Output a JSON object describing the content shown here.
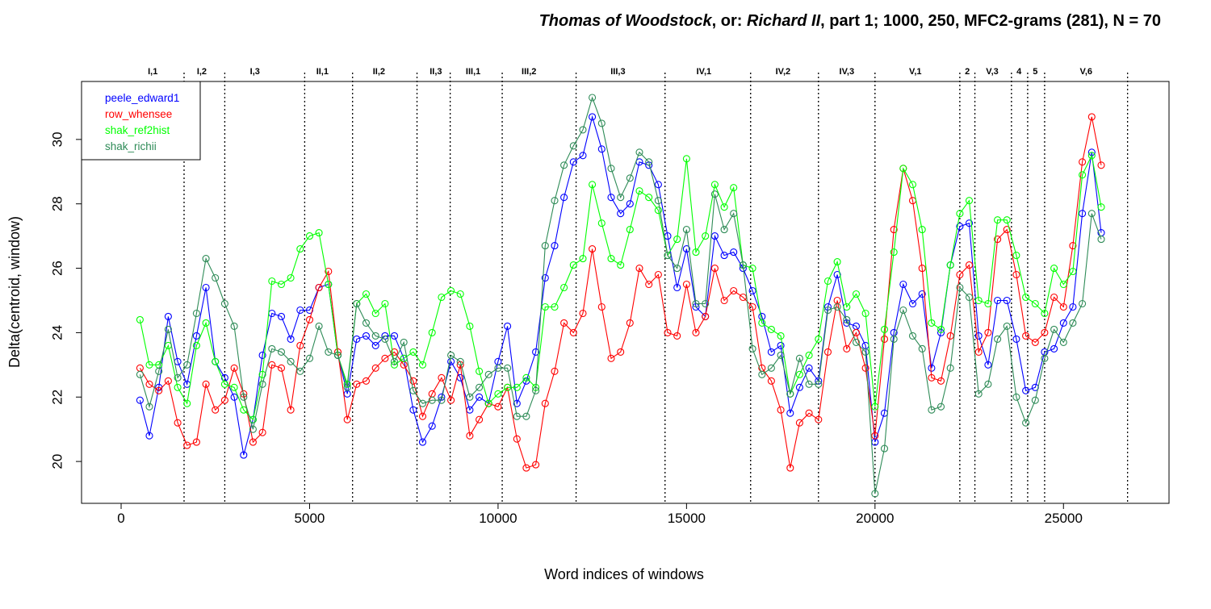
{
  "title": {
    "italic_1": "Thomas of Woodstock",
    "plain_1": ", or: ",
    "italic_2": "Richard II",
    "plain_2": ", part 1; 1000, 250, MFC2-grams (281), N = 70"
  },
  "chart_data": {
    "type": "line",
    "xlabel": "Word indices of windows",
    "ylabel": "Delta(centroid, window)",
    "xlim": [
      -1050,
      27800
    ],
    "ylim": [
      18.7,
      31.8
    ],
    "x_ticks": [
      0,
      5000,
      10000,
      15000,
      20000,
      25000
    ],
    "x_tick_labels": [
      "0",
      "5000",
      "10000",
      "15000",
      "20000",
      "25000"
    ],
    "y_ticks": [
      20,
      22,
      24,
      26,
      28,
      30
    ],
    "y_tick_labels": [
      "20",
      "22",
      "24",
      "26",
      "28",
      "30"
    ],
    "legend_position": "top-left",
    "marker": "open-circle",
    "scene_boundaries": [
      1670,
      2750,
      4870,
      6140,
      7850,
      8730,
      10110,
      12070,
      14430,
      16700,
      18500,
      20000,
      22250,
      22650,
      23620,
      24050,
      24500,
      26700
    ],
    "scene_labels": [
      {
        "label": "I,1",
        "x": 840
      },
      {
        "label": "I,2",
        "x": 2140
      },
      {
        "label": "I,3",
        "x": 3550
      },
      {
        "label": "II,1",
        "x": 5340
      },
      {
        "label": "II,2",
        "x": 6840
      },
      {
        "label": "II,3",
        "x": 8350
      },
      {
        "label": "III,1",
        "x": 9340
      },
      {
        "label": "III,2",
        "x": 10820
      },
      {
        "label": "III,3",
        "x": 13180
      },
      {
        "label": "IV,1",
        "x": 15460
      },
      {
        "label": "IV,2",
        "x": 17560
      },
      {
        "label": "IV,3",
        "x": 19250
      },
      {
        "label": "V,1",
        "x": 21070
      },
      {
        "label": "2",
        "x": 22450
      },
      {
        "label": "V,3",
        "x": 23110
      },
      {
        "label": "4",
        "x": 23820
      },
      {
        "label": "5",
        "x": 24250
      },
      {
        "label": "V,6",
        "x": 25600
      }
    ],
    "x": [
      500,
      750,
      1000,
      1250,
      1500,
      1750,
      2000,
      2250,
      2500,
      2750,
      3000,
      3250,
      3500,
      3750,
      4000,
      4250,
      4500,
      4750,
      5000,
      5250,
      5500,
      5750,
      6000,
      6250,
      6500,
      6750,
      7000,
      7250,
      7500,
      7750,
      8000,
      8250,
      8500,
      8750,
      9000,
      9250,
      9500,
      9750,
      10000,
      10250,
      10500,
      10750,
      11000,
      11250,
      11500,
      11750,
      12000,
      12250,
      12500,
      12750,
      13000,
      13250,
      13500,
      13750,
      14000,
      14250,
      14500,
      14750,
      15000,
      15250,
      15500,
      15750,
      16000,
      16250,
      16500,
      16750,
      17000,
      17250,
      17500,
      17750,
      18000,
      18250,
      18500,
      18750,
      19000,
      19250,
      19500,
      19750,
      20000,
      20250,
      20500,
      20750,
      21000,
      21250,
      21500,
      21750,
      22000,
      22250,
      22500,
      22750,
      23000,
      23250,
      23500,
      23750,
      24000,
      24250,
      24500,
      24750,
      25000,
      25250,
      25500,
      25750,
      26000
    ],
    "series": [
      {
        "name": "peele_edward1",
        "color": "#0000ff",
        "values": [
          21.9,
          20.8,
          22.3,
          24.5,
          23.1,
          22.4,
          23.9,
          25.4,
          23.1,
          22.6,
          22.0,
          20.2,
          21.3,
          23.3,
          24.6,
          24.5,
          23.8,
          24.7,
          24.7,
          25.4,
          25.5,
          23.3,
          22.1,
          23.8,
          23.9,
          23.6,
          23.9,
          23.9,
          23.2,
          21.6,
          20.6,
          21.1,
          22.0,
          23.1,
          22.6,
          21.6,
          22.0,
          21.8,
          23.1,
          24.2,
          21.8,
          22.5,
          23.4,
          25.7,
          26.7,
          28.2,
          29.3,
          29.5,
          30.7,
          29.7,
          28.2,
          27.7,
          28.0,
          29.3,
          29.2,
          28.6,
          27.0,
          25.4,
          26.6,
          24.8,
          24.5,
          27.0,
          26.4,
          26.5,
          26.0,
          25.3,
          24.5,
          23.4,
          23.6,
          21.5,
          22.3,
          22.9,
          22.5,
          24.8,
          25.8,
          24.3,
          24.2,
          23.6,
          20.6,
          21.5,
          24.0,
          25.5,
          24.9,
          25.2,
          22.9,
          24.0,
          26.1,
          27.3,
          27.4,
          23.9,
          23.0,
          25.0,
          25.0,
          23.8,
          22.2,
          22.3,
          23.4,
          23.5,
          24.3,
          24.8,
          27.7,
          29.6,
          27.1
        ]
      },
      {
        "name": "row_whensee",
        "color": "#ff0000",
        "values": [
          22.9,
          22.4,
          22.2,
          22.5,
          21.2,
          20.5,
          20.6,
          22.4,
          21.6,
          21.9,
          22.9,
          22.1,
          20.6,
          20.9,
          23.0,
          22.9,
          21.6,
          23.6,
          24.4,
          25.4,
          25.9,
          23.4,
          21.3,
          22.4,
          22.5,
          22.9,
          23.2,
          23.4,
          23.0,
          22.5,
          21.4,
          22.1,
          22.6,
          21.9,
          23.0,
          20.8,
          21.3,
          21.8,
          21.7,
          22.3,
          20.7,
          19.8,
          19.9,
          21.8,
          22.8,
          24.3,
          24.0,
          24.6,
          26.6,
          24.8,
          23.2,
          23.4,
          24.3,
          26.0,
          25.5,
          25.8,
          24.0,
          23.9,
          25.5,
          24.0,
          24.5,
          26.0,
          25.0,
          25.3,
          25.1,
          24.8,
          22.9,
          22.5,
          21.6,
          19.8,
          21.2,
          21.5,
          21.3,
          23.4,
          25.0,
          23.5,
          24.0,
          22.9,
          20.8,
          23.8,
          27.2,
          29.1,
          28.1,
          26.0,
          22.6,
          22.5,
          23.9,
          25.8,
          26.1,
          23.4,
          24.0,
          26.9,
          27.2,
          25.8,
          23.9,
          23.7,
          24.0,
          25.1,
          24.8,
          26.7,
          29.3,
          30.7,
          29.2
        ]
      },
      {
        "name": "shak_ref2hist",
        "color": "#00ff00",
        "values": [
          24.4,
          23.0,
          23.0,
          23.6,
          22.3,
          21.8,
          23.6,
          24.3,
          23.1,
          22.4,
          22.3,
          21.6,
          21.3,
          22.7,
          25.6,
          25.5,
          25.7,
          26.6,
          27.0,
          27.1,
          25.5,
          23.3,
          22.4,
          24.9,
          25.2,
          24.6,
          24.9,
          23.0,
          23.2,
          23.4,
          23.0,
          24.0,
          25.1,
          25.3,
          25.2,
          24.2,
          22.8,
          21.8,
          22.1,
          22.3,
          22.3,
          22.6,
          22.3,
          24.8,
          24.8,
          25.4,
          26.1,
          26.3,
          28.6,
          27.4,
          26.3,
          26.1,
          27.2,
          28.4,
          28.2,
          27.8,
          26.4,
          26.9,
          29.4,
          26.5,
          27.0,
          28.6,
          27.9,
          28.5,
          26.1,
          26.0,
          24.3,
          24.1,
          23.9,
          22.1,
          22.7,
          23.3,
          23.8,
          25.6,
          26.2,
          24.8,
          25.2,
          24.6,
          21.7,
          24.1,
          26.5,
          29.1,
          28.6,
          27.2,
          24.3,
          24.1,
          26.1,
          27.7,
          28.1,
          25.0,
          24.9,
          27.5,
          27.5,
          26.4,
          25.1,
          24.9,
          24.6,
          26.0,
          25.5,
          25.9,
          28.9,
          29.5,
          27.9
        ]
      },
      {
        "name": "shak_richii",
        "color": "#2e8b57",
        "values": [
          22.7,
          21.7,
          22.8,
          24.1,
          22.6,
          23.0,
          24.6,
          26.3,
          25.7,
          24.9,
          24.2,
          22.0,
          21.0,
          22.4,
          23.5,
          23.4,
          23.1,
          22.8,
          23.2,
          24.2,
          23.4,
          23.3,
          22.3,
          24.9,
          24.3,
          23.9,
          23.8,
          23.1,
          23.7,
          22.2,
          21.8,
          21.9,
          21.9,
          23.3,
          23.1,
          22.0,
          22.3,
          22.7,
          22.9,
          22.9,
          21.4,
          21.4,
          22.2,
          26.7,
          28.1,
          29.2,
          29.8,
          30.3,
          31.3,
          30.5,
          29.1,
          28.2,
          28.8,
          29.6,
          29.3,
          28.1,
          26.4,
          26.0,
          27.2,
          24.9,
          24.9,
          28.3,
          27.2,
          27.7,
          26.1,
          23.5,
          22.7,
          22.9,
          23.3,
          22.1,
          23.2,
          22.4,
          22.4,
          24.7,
          24.8,
          24.4,
          23.7,
          23.4,
          19.0,
          20.4,
          23.8,
          24.7,
          23.9,
          23.5,
          21.6,
          21.7,
          22.9,
          25.4,
          25.1,
          22.1,
          22.4,
          23.8,
          24.2,
          22.0,
          21.2,
          21.9,
          23.2,
          24.1,
          23.7,
          24.3,
          24.9,
          27.7,
          26.9
        ]
      }
    ]
  }
}
